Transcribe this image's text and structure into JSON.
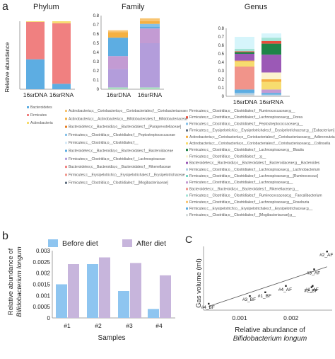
{
  "panel_letters": {
    "a": "a",
    "b": "b",
    "c": "C"
  },
  "chart_data": [
    {
      "type": "bar",
      "stacked": true,
      "title": "Phylum",
      "ylabel": "Relative abundance",
      "ylim": [
        0,
        1
      ],
      "categories": [
        "16srDNA",
        "16srRNA"
      ],
      "series": [
        {
          "name": "Bacteroidetes",
          "color": "#5dade2",
          "values": [
            0.44,
            0.08
          ]
        },
        {
          "name": "Firmicutes",
          "color": "#f08080",
          "values": [
            0.55,
            0.89
          ]
        },
        {
          "name": "Actinobacteria",
          "color": "#f7dc6f",
          "values": [
            0.01,
            0.03
          ]
        }
      ]
    },
    {
      "type": "bar",
      "stacked": true,
      "title": "Family",
      "yticks": [
        "0",
        "0.1",
        "0.2",
        "0.3",
        "0.4",
        "0.5",
        "0.6",
        "0.7",
        "0.8"
      ],
      "ylim": [
        0,
        0.8
      ],
      "categories": [
        "16srDNA",
        "16srRNA"
      ],
      "series": [
        {
          "color": "#a9dfbf",
          "values": [
            0.02,
            0.02
          ]
        },
        {
          "color": "#b39ddb",
          "values": [
            0.2,
            0.48
          ]
        },
        {
          "color": "#c39bd3",
          "values": [
            0.14,
            0.16
          ]
        },
        {
          "color": "#5dade2",
          "values": [
            0.2,
            0.02
          ]
        },
        {
          "color": "#85c1e9",
          "values": [
            0.0,
            0.03
          ]
        },
        {
          "color": "#f5b041",
          "values": [
            0.06,
            0.03
          ]
        },
        {
          "color": "#f8c471",
          "values": [
            0.02,
            0.03
          ]
        }
      ],
      "legend": [
        "Actinobacteria;c__Coriobacteriia;o__Coriobacteriales;f__Coriobacteriaceae",
        "Actinobacteria;c__Actinobacteria;o__Bifidobacteriales;f__Bifidobacteriaceae",
        "Bacteroidetes;c__Bacteroidia;o__Bacteroidales;f__[Paraprevotellaceae]",
        "Firmicutes;c__Clostridia;o__Clostridiales;f__Peptostreptococcaceae",
        "Firmicutes;c__Clostridia;o__Clostridiales;f__",
        "Bacteroidetes;c__Bacteroidia;o__Bacteroidales;f__Bacteroidaceae",
        "Firmicutes;c__Clostridia;o__Clostridiales;f__Lachnospiraceae",
        "Bacteroidetes;c__Bacteroidia;o__Bacteroidales;f__Rikenellaceae",
        "Firmicutes;c__Erysipelotrichi;o__Erysipelotrichales;f__Erysipelotrichaceae",
        "Firmicutes;c__Clostridia;o__Clostridiales;f__[Mogibacteriaceae]"
      ],
      "legend_colors": [
        "#f8c471",
        "#f5b041",
        "#e67e22",
        "#85c1e9",
        "#d6eaf8",
        "#5dade2",
        "#b39ddb",
        "#f08080",
        "#f1948a",
        "#5d6d7e"
      ]
    },
    {
      "type": "bar",
      "stacked": true,
      "title": "Genus",
      "yticks": [
        "0",
        "0.1",
        "0.2",
        "0.3",
        "0.4",
        "0.5",
        "0.6",
        "0.7",
        "0.8"
      ],
      "ylim": [
        0,
        0.8
      ],
      "categories": [
        "16srDNA",
        "16srRNA"
      ],
      "series": [
        {
          "color": "#d0d3d4",
          "values": [
            0.02,
            0.01
          ]
        },
        {
          "color": "#a9cce3",
          "values": [
            0.02,
            0.01
          ]
        },
        {
          "color": "#5dade2",
          "values": [
            0.04,
            0.02
          ]
        },
        {
          "color": "#f1948a",
          "values": [
            0.27,
            0.0
          ]
        },
        {
          "color": "#c39bd3",
          "values": [
            0.0,
            0.04
          ]
        },
        {
          "color": "#f7dc6f",
          "values": [
            0.06,
            0.09
          ]
        },
        {
          "color": "#f5b041",
          "values": [
            0.01,
            0.03
          ]
        },
        {
          "color": "#fcf3cf",
          "values": [
            0.0,
            0.08
          ]
        },
        {
          "color": "#9b59b6",
          "values": [
            0.08,
            0.21
          ]
        },
        {
          "color": "#1e8449",
          "values": [
            0.02,
            0.13
          ]
        },
        {
          "color": "#e74c3c",
          "values": [
            0.01,
            0.03
          ]
        },
        {
          "color": "#a3e4d7",
          "values": [
            0.03,
            0.04
          ]
        },
        {
          "color": "#d6f5fb",
          "values": [
            0.14,
            0.05
          ]
        }
      ],
      "legend": [
        "Firmicutes;c__Clostridia;o__Clostridiales;f__Ruminococcaceae;g__",
        "Firmicutes;c__Clostridia;o__Clostridiales;f__Lachnospiraceae;g__Dorea",
        "Firmicutes;c__Clostridia;o__Clostridiales;f__Peptostreptococcaceae;g__",
        "Firmicutes;c__Erysipelotrichi;o__Erysipelotrichales;f__Erysipelotrichaceae;g__[Eubacterium]",
        "Actinobacteria;c__Coriobacteriia;o__Coriobacteriales;f__Coriobacteriaceae;g__Adlercreutzia",
        "Actinobacteria;c__Coriobacteriia;o__Coriobacteriales;f__Coriobacteriaceae;g__Collinsella",
        "Firmicutes;c__Clostridia;o__Clostridiales;f__Lachnospiraceae;g__Blautia",
        "Firmicutes;c__Clostridia;o__Clostridiales;f__;g__",
        "Bacteroidetes;c__Bacteroidia;o__Bacteroidales;f__Bacteroidaceae;g__Bacteroides",
        "Firmicutes;c__Clostridia;o__Clostridiales;f__Lachnospiraceae;g__Lachnobacterium",
        "Firmicutes;c__Clostridia;o__Clostridiales;f__Lachnospiraceae;g__[Ruminococcus]",
        "Firmicutes;c__Clostridia;o__Clostridiales;f__Lachnospiraceae;g__",
        "Bacteroidetes;c__Bacteroidia;o__Bacteroidales;f__Rikenellaceae;g__",
        "Firmicutes;c__Clostridia;o__Clostridiales;f__Ruminococcaceae;g__Faecalibacterium",
        "Firmicutes;c__Clostridia;o__Clostridiales;f__Lachnospiraceae;g__Roseburia",
        "Firmicutes;c__Erysipelotrichi;o__Erysipelotrichales;f__Erysipelotrichaceae;g__",
        "Firmicutes;c__Clostridia;o__Clostridiales;f__[Mogibacteriaceae];g__"
      ],
      "legend_colors": [
        "#d0d3d4",
        "#e74c3c",
        "#85c1e9",
        "#5d6d7e",
        "#f5b041",
        "#f7dc6f",
        "#1e8449",
        "#fcf3cf",
        "#9b59b6",
        "#a9cce3",
        "#76d7c4",
        "#c39bd3",
        "#f1948a",
        "#a3e4d7",
        "#f8c471",
        "#5dade2",
        "#d5dbdb"
      ]
    },
    {
      "type": "bar",
      "categories": [
        "#1",
        "#2",
        "#3",
        "#4"
      ],
      "xlabel": "Samples",
      "ylabel": "Relative abundance of",
      "ylabel_italic": "Bifidobacterium longum",
      "ylim": [
        0,
        0.003
      ],
      "yticks": [
        "0",
        "0.0005",
        "0.001",
        "0.0015",
        "0.002",
        "0.0025",
        "0.003"
      ],
      "series": [
        {
          "name": "Before diet",
          "color": "#8ec5f0",
          "values": [
            0.0015,
            0.0024,
            0.0012,
            0.0004
          ]
        },
        {
          "name": "After diet",
          "color": "#c7b5dc",
          "values": [
            0.0024,
            0.0027,
            0.00245,
            0.0019
          ]
        }
      ]
    },
    {
      "type": "scatter",
      "xlabel": "Relative abundance of",
      "xlabel_italic": "Bifidobacterium longum",
      "ylabel": "Gas volume (ml)",
      "xticks": [
        "0.001",
        "0.002"
      ],
      "xlim": [
        0.0003,
        0.0028
      ],
      "ylim": [
        0,
        1
      ],
      "points": [
        {
          "label": "#4_BF",
          "x": 0.0004,
          "y": 0.1
        },
        {
          "label": "#3_BF",
          "x": 0.0012,
          "y": 0.22
        },
        {
          "label": "#1_BF",
          "x": 0.0015,
          "y": 0.28
        },
        {
          "label": "#4_AF",
          "x": 0.0019,
          "y": 0.38
        },
        {
          "label": "#2_BF",
          "x": 0.0024,
          "y": 0.36
        },
        {
          "label": "#1_AF",
          "x": 0.00242,
          "y": 0.38
        },
        {
          "label": "#3_AF",
          "x": 0.00245,
          "y": 0.64
        },
        {
          "label": "#2_AF",
          "x": 0.0027,
          "y": 0.92
        }
      ],
      "trendline": {
        "x": [
          0.0004,
          0.0027
        ],
        "y": [
          0.06,
          0.68
        ]
      }
    }
  ]
}
